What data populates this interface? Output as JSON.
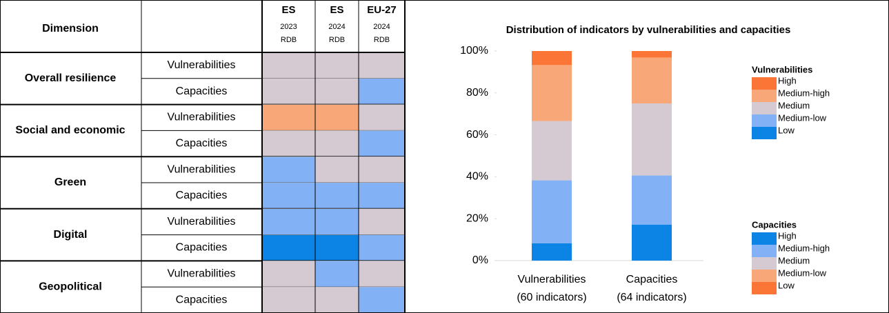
{
  "table": {
    "header": "Dimension",
    "columns": [
      {
        "name": "ES",
        "year": "2023",
        "source": "RDB"
      },
      {
        "name": "ES",
        "year": "2024",
        "source": "RDB"
      },
      {
        "name": "EU-27",
        "year": "2024",
        "source": "RDB"
      }
    ],
    "groups": [
      {
        "name": "Overall resilience",
        "rows": [
          {
            "label": "Vulnerabilities",
            "cells": [
              "#d5cad2",
              "#d5cad2",
              "#d5cad2"
            ]
          },
          {
            "label": "Capacities",
            "cells": [
              "#d5cad2",
              "#d5cad2",
              "#82b1f6"
            ]
          }
        ]
      },
      {
        "name": "Social and economic",
        "rows": [
          {
            "label": "Vulnerabilities",
            "cells": [
              "#f8a878",
              "#f8a878",
              "#d5cad2"
            ]
          },
          {
            "label": "Capacities",
            "cells": [
              "#d5cad2",
              "#d5cad2",
              "#82b1f6"
            ]
          }
        ]
      },
      {
        "name": "Green",
        "rows": [
          {
            "label": "Vulnerabilities",
            "cells": [
              "#82b1f6",
              "#d5cad2",
              "#d5cad2"
            ]
          },
          {
            "label": "Capacities",
            "cells": [
              "#82b1f6",
              "#82b1f6",
              "#82b1f6"
            ]
          }
        ]
      },
      {
        "name": "Digital",
        "rows": [
          {
            "label": "Vulnerabilities",
            "cells": [
              "#82b1f6",
              "#82b1f6",
              "#d5cad2"
            ]
          },
          {
            "label": "Capacities",
            "cells": [
              "#0b84e6",
              "#0b84e6",
              "#82b1f6"
            ]
          }
        ]
      },
      {
        "name": "Geopolitical",
        "rows": [
          {
            "label": "Vulnerabilities",
            "cells": [
              "#d5cad2",
              "#82b1f6",
              "#d5cad2"
            ]
          },
          {
            "label": "Capacities",
            "cells": [
              "#d5cad2",
              "#d5cad2",
              "#82b1f6"
            ]
          }
        ]
      }
    ]
  },
  "chart_data": {
    "type": "stacked_bar",
    "title": "Distribution of indicators by vulnerabilities and capacities",
    "categories": [
      "Vulnerabilities",
      "Capacities"
    ],
    "category_notes": [
      "(60 indicators)",
      "(64 indicators)"
    ],
    "series": [
      {
        "color": "#0b84e6",
        "values": [
          8.3,
          17.2
        ]
      },
      {
        "color": "#82b1f6",
        "values": [
          30,
          23.4
        ]
      },
      {
        "color": "#d5cad2",
        "values": [
          28.3,
          34.4
        ]
      },
      {
        "color": "#f8a878",
        "values": [
          26.7,
          21.9
        ]
      },
      {
        "color": "#fb7536",
        "values": [
          6.7,
          3.1
        ]
      }
    ],
    "ylim": [
      0,
      100
    ],
    "yticks": [
      {
        "value": 0,
        "label": "0%"
      },
      {
        "value": 20,
        "label": "20%"
      },
      {
        "value": 40,
        "label": "40%"
      },
      {
        "value": 60,
        "label": "60%"
      },
      {
        "value": 80,
        "label": "80%"
      },
      {
        "value": 100,
        "label": "100%"
      }
    ],
    "legends": [
      {
        "title": "Vulnerabilities",
        "items": [
          {
            "name": "High",
            "color": "#fb7536"
          },
          {
            "name": "Medium-high",
            "color": "#f8a878"
          },
          {
            "name": "Medium",
            "color": "#d5cad2"
          },
          {
            "name": "Medium-low",
            "color": "#82b1f6"
          },
          {
            "name": "Low",
            "color": "#0b84e6"
          }
        ]
      },
      {
        "title": "Capacities",
        "items": [
          {
            "name": "High",
            "color": "#0b84e6"
          },
          {
            "name": "Medium-high",
            "color": "#82b1f6"
          },
          {
            "name": "Medium",
            "color": "#d5cad2"
          },
          {
            "name": "Medium-low",
            "color": "#f8a878"
          },
          {
            "name": "Low",
            "color": "#fb7536"
          }
        ]
      }
    ]
  }
}
